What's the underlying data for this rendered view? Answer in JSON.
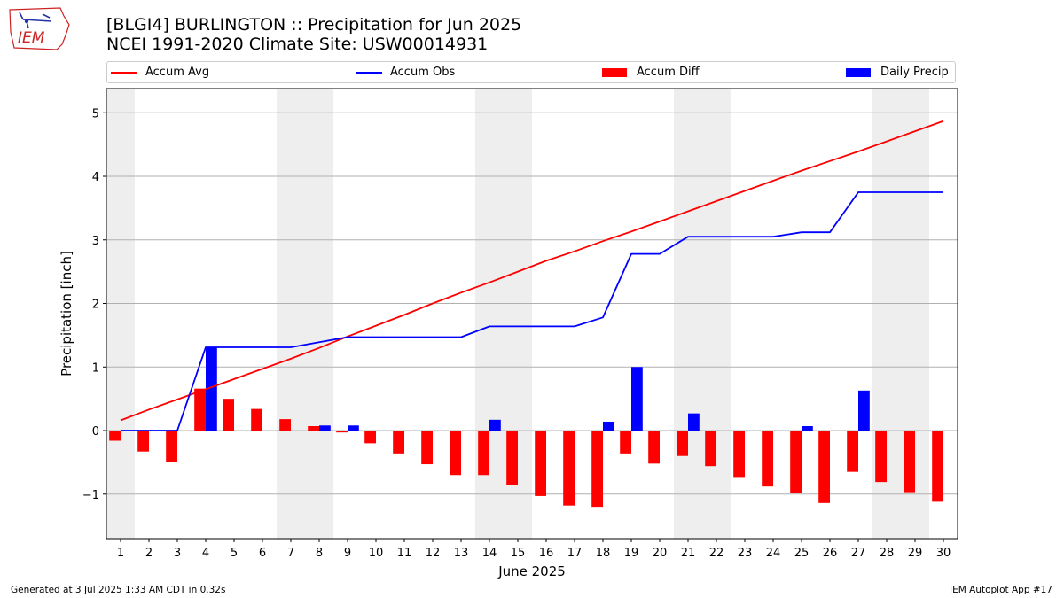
{
  "header": {
    "title_line1": "[BLGI4] BURLINGTON :: Precipitation for Jun 2025",
    "title_line2": "NCEI 1991-2020 Climate Site: USW00014931"
  },
  "logo": {
    "text": "IEM",
    "icon": "iem-iowa-map-logo",
    "color": "#cc2222"
  },
  "legend": {
    "placement": "top, above plot, horizontal",
    "items": [
      {
        "label": "Accum Avg",
        "kind": "line",
        "color": "#ff0000"
      },
      {
        "label": "Accum Obs",
        "kind": "line",
        "color": "#0000ff"
      },
      {
        "label": "Accum Diff",
        "kind": "bar",
        "color": "#ff0000"
      },
      {
        "label": "Daily Precip",
        "kind": "bar",
        "color": "#0000ff"
      }
    ]
  },
  "footer": {
    "left": "Generated at 3 Jul 2025 1:33 AM CDT in 0.32s",
    "right": "IEM Autoplot App #17"
  },
  "chart_data": {
    "type": "bar",
    "xlabel": "June 2025",
    "ylabel": "Precipitation [inch]",
    "x": [
      1,
      2,
      3,
      4,
      5,
      6,
      7,
      8,
      9,
      10,
      11,
      12,
      13,
      14,
      15,
      16,
      17,
      18,
      19,
      20,
      21,
      22,
      23,
      24,
      25,
      26,
      27,
      28,
      29,
      30
    ],
    "xlim": [
      0.5,
      30.5
    ],
    "ylim": [
      -1.7,
      5.38
    ],
    "yticks": [
      -1,
      0,
      1,
      2,
      3,
      4,
      5
    ],
    "grid": "horizontal",
    "weekend_shading": [
      [
        0.5,
        1.5
      ],
      [
        6.5,
        8.5
      ],
      [
        13.5,
        15.5
      ],
      [
        20.5,
        22.5
      ],
      [
        27.5,
        29.5
      ]
    ],
    "shading_color": "#eeeeee",
    "series": [
      {
        "name": "Accum Avg",
        "kind": "line",
        "color": "#ff0000",
        "values": [
          0.16,
          0.33,
          0.49,
          0.65,
          0.81,
          0.97,
          1.13,
          1.3,
          1.48,
          1.65,
          1.82,
          2.0,
          2.17,
          2.33,
          2.5,
          2.67,
          2.82,
          2.98,
          3.13,
          3.29,
          3.45,
          3.61,
          3.77,
          3.93,
          4.09,
          4.24,
          4.39,
          4.55,
          4.71,
          4.87
        ]
      },
      {
        "name": "Accum Obs",
        "kind": "line",
        "color": "#0000ff",
        "values": [
          0.0,
          0.0,
          0.0,
          1.31,
          1.31,
          1.31,
          1.31,
          1.39,
          1.47,
          1.47,
          1.47,
          1.47,
          1.47,
          1.64,
          1.64,
          1.64,
          1.64,
          1.78,
          2.78,
          2.78,
          3.05,
          3.05,
          3.05,
          3.05,
          3.12,
          3.12,
          3.75,
          3.75,
          3.75,
          3.75
        ]
      },
      {
        "name": "Accum Diff",
        "kind": "bar",
        "color": "#ff0000",
        "values": [
          -0.16,
          -0.33,
          -0.49,
          0.66,
          0.5,
          0.34,
          0.18,
          0.07,
          -0.03,
          -0.2,
          -0.36,
          -0.53,
          -0.7,
          -0.7,
          -0.86,
          -1.03,
          -1.18,
          -1.2,
          -0.36,
          -0.52,
          -0.4,
          -0.56,
          -0.73,
          -0.88,
          -0.98,
          -1.14,
          -0.65,
          -0.81,
          -0.97,
          -1.12
        ]
      },
      {
        "name": "Daily Precip",
        "kind": "bar",
        "color": "#0000ff",
        "values": [
          0,
          0,
          0,
          1.31,
          0,
          0,
          0,
          0.08,
          0.08,
          0,
          0,
          0,
          0,
          0.17,
          0,
          0,
          0,
          0.14,
          1.0,
          0,
          0.27,
          0,
          0,
          0,
          0.07,
          0,
          0.63,
          0,
          0,
          0
        ]
      }
    ]
  }
}
